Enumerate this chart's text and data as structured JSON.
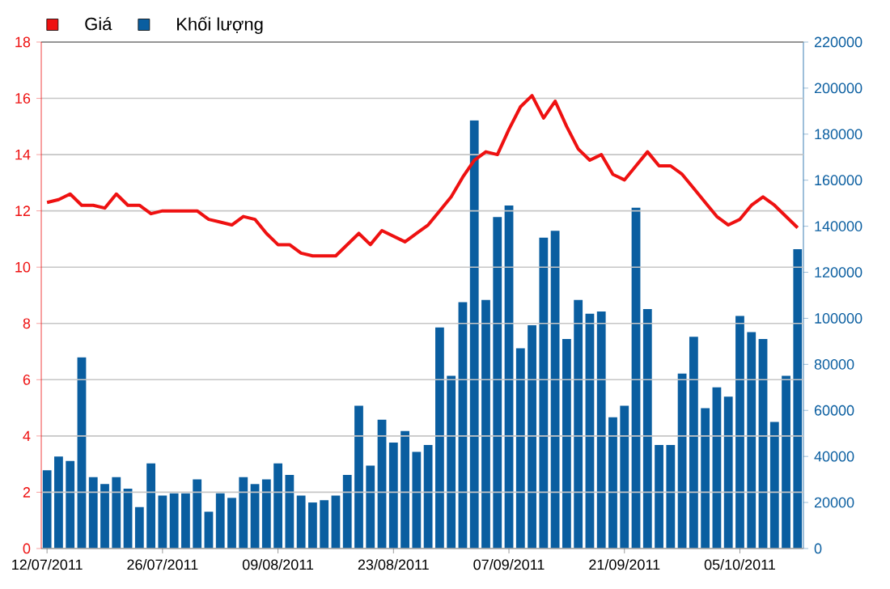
{
  "chart_data": {
    "type": "bar",
    "categories": [
      "12/07/2011",
      null,
      null,
      null,
      null,
      null,
      null,
      null,
      null,
      null,
      "26/07/2011",
      null,
      null,
      null,
      null,
      null,
      null,
      null,
      null,
      null,
      "09/08/2011",
      null,
      null,
      null,
      null,
      null,
      null,
      null,
      null,
      null,
      "23/08/2011",
      null,
      null,
      null,
      null,
      null,
      null,
      null,
      null,
      null,
      "07/09/2011",
      null,
      null,
      null,
      null,
      null,
      null,
      null,
      null,
      null,
      "21/09/2011",
      null,
      null,
      null,
      null,
      null,
      null,
      null,
      null,
      null,
      "05/10/2011",
      null,
      null,
      null,
      null,
      null
    ],
    "series": [
      {
        "name": "Giá",
        "type": "line",
        "axis": "y",
        "color": "#ee1111",
        "values": [
          12.3,
          12.4,
          12.6,
          12.2,
          12.2,
          12.1,
          12.6,
          12.2,
          12.2,
          11.9,
          12.0,
          12.0,
          12.0,
          12.0,
          11.7,
          11.6,
          11.5,
          11.8,
          11.7,
          11.2,
          10.8,
          10.8,
          10.5,
          10.4,
          10.4,
          10.4,
          10.8,
          11.2,
          10.8,
          11.3,
          11.1,
          10.9,
          11.2,
          11.5,
          12.0,
          12.5,
          13.2,
          13.8,
          14.1,
          14.0,
          14.9,
          15.7,
          16.1,
          15.3,
          15.9,
          15.0,
          14.2,
          13.8,
          14.0,
          13.3,
          13.1,
          13.6,
          14.1,
          13.6,
          13.6,
          13.3,
          12.8,
          12.3,
          11.8,
          11.5,
          11.7,
          12.2,
          12.5,
          12.2,
          11.8,
          11.4
        ]
      },
      {
        "name": "Khối lượng",
        "axis": "y2",
        "color": "#0a5ea0",
        "values": [
          34000,
          40000,
          38000,
          83000,
          31000,
          28000,
          31000,
          26000,
          18000,
          37000,
          23000,
          24000,
          24000,
          30000,
          16000,
          24000,
          22000,
          31000,
          28000,
          30000,
          37000,
          32000,
          23000,
          20000,
          21000,
          23000,
          32000,
          62000,
          36000,
          56000,
          46000,
          51000,
          42000,
          45000,
          96000,
          75000,
          107000,
          186000,
          108000,
          144000,
          149000,
          87000,
          97000,
          135000,
          138000,
          91000,
          108000,
          102000,
          103000,
          57000,
          62000,
          148000,
          104000,
          45000,
          45000,
          76000,
          92000,
          61000,
          70000,
          66000,
          101000,
          94000,
          91000,
          55000,
          75000,
          130000
        ]
      }
    ],
    "ylim": [
      0,
      18
    ],
    "yticks": [
      0,
      2,
      4,
      6,
      8,
      10,
      12,
      14,
      16,
      18
    ],
    "y2lim": [
      0,
      220000
    ],
    "y2ticks": [
      0,
      20000,
      40000,
      60000,
      80000,
      100000,
      120000,
      140000,
      160000,
      180000,
      200000,
      220000
    ],
    "grid": "y",
    "legend": "top left"
  }
}
